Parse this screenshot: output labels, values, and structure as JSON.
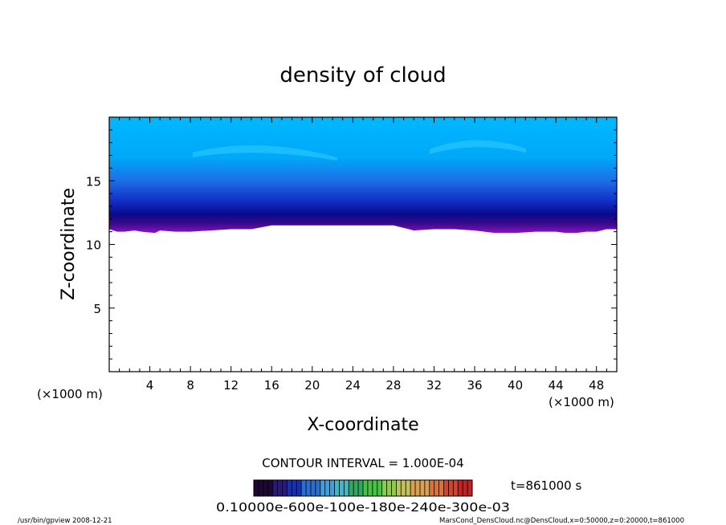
{
  "chart_data": {
    "type": "heatmap",
    "title": "density of cloud",
    "xlabel": "X-coordinate",
    "ylabel": "Z-coordinate",
    "x_unit_left": "(×1000 m)",
    "x_unit_right": "(×1000 m)",
    "xlim": [
      0,
      50
    ],
    "ylim": [
      0,
      20
    ],
    "x_ticks": [
      4,
      8,
      12,
      16,
      20,
      24,
      28,
      32,
      36,
      40,
      44,
      48
    ],
    "y_ticks": [
      5,
      10,
      15
    ],
    "cloud_base_z": [
      [
        0,
        11.2
      ],
      [
        0.8,
        11.0
      ],
      [
        1.5,
        11.0
      ],
      [
        2.5,
        11.1
      ],
      [
        3.2,
        11.0
      ],
      [
        4.5,
        10.9
      ],
      [
        5,
        11.1
      ],
      [
        6.5,
        11.0
      ],
      [
        8,
        11.0
      ],
      [
        10,
        11.1
      ],
      [
        12,
        11.2
      ],
      [
        14,
        11.2
      ],
      [
        16,
        11.5
      ],
      [
        20,
        11.5
      ],
      [
        24,
        11.5
      ],
      [
        28,
        11.5
      ],
      [
        30,
        11.1
      ],
      [
        32,
        11.2
      ],
      [
        34,
        11.2
      ],
      [
        36,
        11.1
      ],
      [
        38,
        10.9
      ],
      [
        40,
        10.9
      ],
      [
        42,
        11.0
      ],
      [
        44,
        11.0
      ],
      [
        45,
        10.9
      ],
      [
        46,
        10.9
      ],
      [
        47,
        11.0
      ],
      [
        48,
        11.0
      ],
      [
        49,
        11.2
      ],
      [
        50,
        11.2
      ]
    ],
    "contour_interval_label": "CONTOUR INTERVAL = 1.000E-04",
    "colorbar_labels_text": "0.10000e-600e-100e-180e-240e-300e-03",
    "colorbar_colors": [
      "#1c0830",
      "#2a1a70",
      "#1830a8",
      "#2a6fd0",
      "#3aa0e0",
      "#40b8c8",
      "#30a860",
      "#4ac048",
      "#90c850",
      "#c0c060",
      "#d8a050",
      "#e07038",
      "#d84028",
      "#c82020"
    ],
    "time_label": "t=861000 s"
  },
  "footer": {
    "left": "/usr/bin/gpview   2008-12-21",
    "right": "MarsCond_DensCloud.nc@DensCloud,x=0:50000,z=0:20000,t=861000"
  }
}
